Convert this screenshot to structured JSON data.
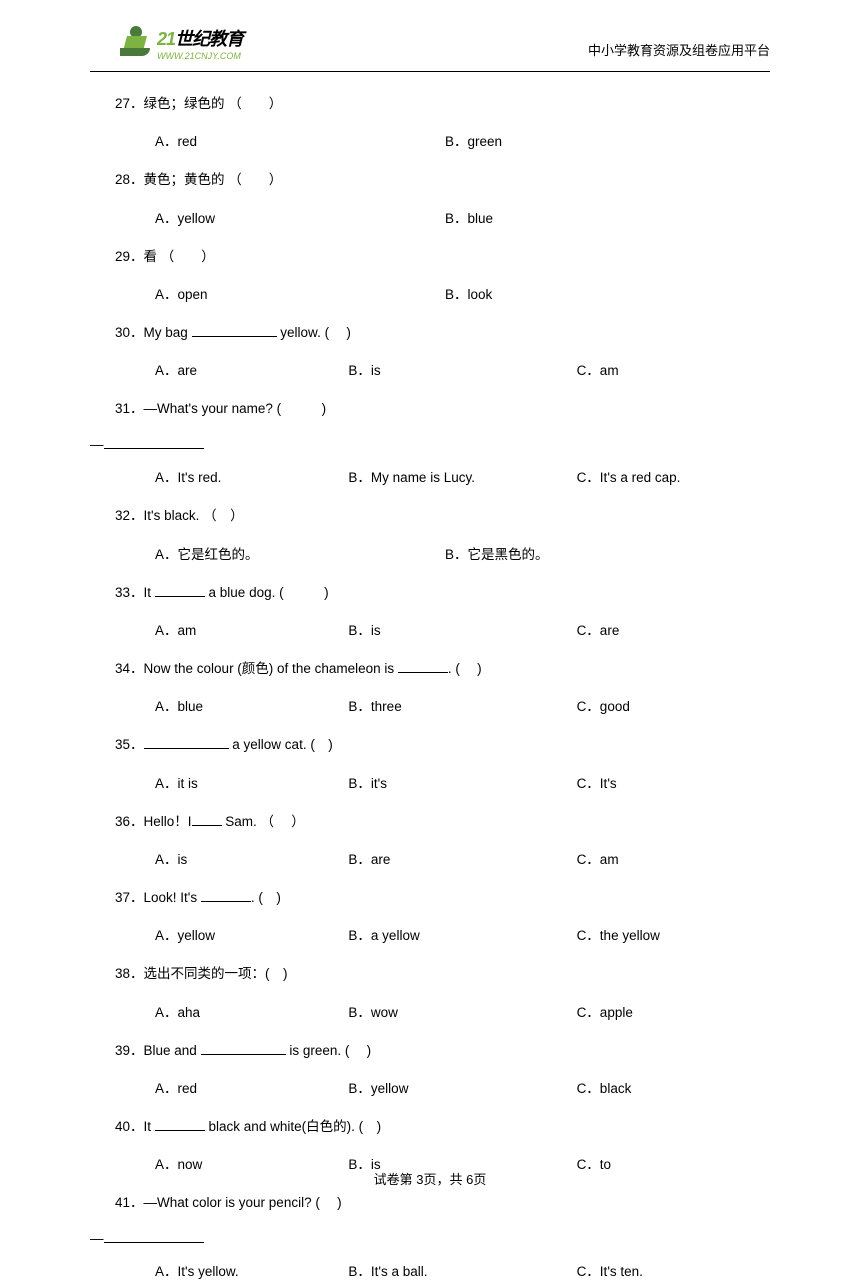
{
  "header": {
    "logo_main_21": "21",
    "logo_main_text": "世纪教育",
    "logo_url": "WWW.21CNJY.COM",
    "platform_text": "中小学教育资源及组卷应用平台"
  },
  "questions": [
    {
      "num": "27",
      "text": "．绿色；绿色的 （　　）",
      "type": "2col",
      "opts": [
        "A．red",
        "B．green"
      ]
    },
    {
      "num": "28",
      "text": "．黄色；黄色的 （　　）",
      "type": "2col",
      "opts": [
        "A．yellow",
        "B．blue"
      ]
    },
    {
      "num": "29",
      "text": "．看 （　　）",
      "type": "2col",
      "opts": [
        "A．open",
        "B．look"
      ]
    },
    {
      "num": "30",
      "text": "．My bag ",
      "text_after": " yellow. (　 )",
      "blank": "med",
      "type": "3col",
      "opts": [
        "A．are",
        "B．is",
        "C．am"
      ]
    },
    {
      "num": "31",
      "text": "．—What's your name? (　　　)",
      "has_answer_blank": true,
      "type": "3col",
      "opts": [
        "A．It's red.",
        "B．My name is Lucy.",
        "C．It's a red cap."
      ]
    },
    {
      "num": "32",
      "text": "．It's black.  （　）",
      "type": "2col",
      "opts": [
        "A．它是红色的。",
        "B．它是黑色的。"
      ]
    },
    {
      "num": "33",
      "text": "．It ",
      "text_after": " a blue dog. (　　　)",
      "blank": "short",
      "type": "3col",
      "opts": [
        "A．am",
        "B．is",
        "C．are"
      ]
    },
    {
      "num": "34",
      "text": "．Now the colour (颜色) of the chameleon is ",
      "text_after": ". (　 )",
      "blank": "short",
      "type": "3col",
      "opts": [
        "A．blue",
        "B．three",
        "C．good"
      ]
    },
    {
      "num": "35",
      "text": "．",
      "text_after": " a yellow cat. (　)",
      "blank": "med",
      "type": "3col",
      "opts": [
        "A．it is",
        "B．it's",
        "C．It's"
      ]
    },
    {
      "num": "36",
      "text": "．Hello！I",
      "text_after": " Sam.  （　 ）",
      "blank": "tiny",
      "type": "3col",
      "opts": [
        "A．is",
        "B．are",
        "C．am"
      ]
    },
    {
      "num": "37",
      "text": "．Look! It's ",
      "text_after": ". (　)",
      "blank": "short",
      "type": "3col",
      "opts": [
        "A．yellow",
        "B．a yellow",
        "C．the yellow"
      ]
    },
    {
      "num": "38",
      "text": "．选出不同类的一项：(　)",
      "type": "3col",
      "opts": [
        "A．aha",
        "B．wow",
        "C．apple"
      ]
    },
    {
      "num": "39",
      "text": "．Blue and ",
      "text_after": " is green. (　 )",
      "blank": "med",
      "type": "3col",
      "opts": [
        "A．red",
        "B．yellow",
        "C．black"
      ]
    },
    {
      "num": "40",
      "text": "．It ",
      "text_after": " black and white(白色的). (　)",
      "blank": "short",
      "type": "3col",
      "opts": [
        "A．now",
        "B．is",
        "C．to"
      ]
    },
    {
      "num": "41",
      "text": "．—What color is your pencil? (　 )",
      "has_answer_blank": true,
      "type": "3col",
      "opts": [
        "A．It's yellow.",
        "B．It's a ball.",
        "C．It's ten."
      ]
    }
  ],
  "footer": {
    "text": "试卷第 3页，共 6页"
  }
}
